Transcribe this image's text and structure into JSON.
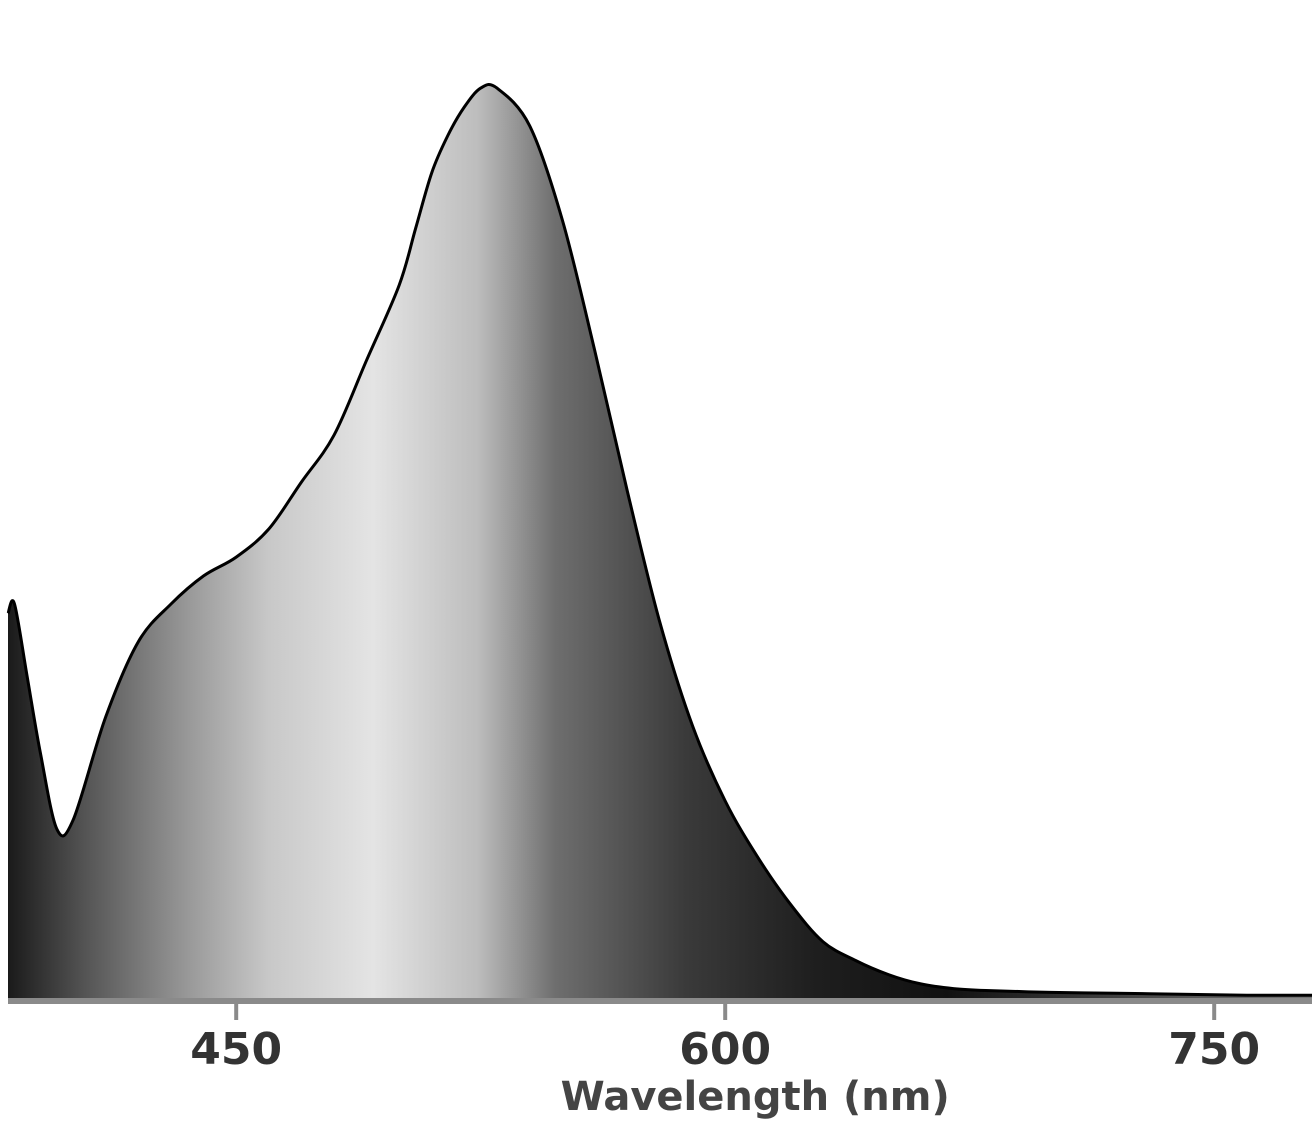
{
  "chart_data": {
    "type": "area",
    "title": "",
    "xlabel": "Wavelength (nm)",
    "ylabel": "",
    "xlim": [
      380,
      780
    ],
    "ylim": [
      0,
      1.0
    ],
    "x_ticks": [
      {
        "value": 450,
        "label": "450"
      },
      {
        "value": 600,
        "label": "600"
      },
      {
        "value": 750,
        "label": "750"
      }
    ],
    "x": [
      380,
      382,
      386,
      390,
      395,
      400,
      410,
      420,
      430,
      440,
      450,
      460,
      470,
      480,
      490,
      500,
      505,
      510,
      515,
      520,
      525,
      530,
      540,
      550,
      560,
      570,
      580,
      590,
      600,
      610,
      620,
      630,
      640,
      650,
      660,
      670,
      680,
      700,
      720,
      740,
      760,
      780
    ],
    "values": [
      0.41,
      0.42,
      0.34,
      0.26,
      0.18,
      0.19,
      0.3,
      0.38,
      0.42,
      0.45,
      0.47,
      0.5,
      0.55,
      0.6,
      0.68,
      0.76,
      0.82,
      0.88,
      0.92,
      0.95,
      0.97,
      0.97,
      0.93,
      0.83,
      0.69,
      0.54,
      0.4,
      0.29,
      0.21,
      0.15,
      0.1,
      0.06,
      0.04,
      0.025,
      0.015,
      0.01,
      0.008,
      0.006,
      0.005,
      0.004,
      0.003,
      0.003
    ],
    "grid": false,
    "legend": "none"
  }
}
